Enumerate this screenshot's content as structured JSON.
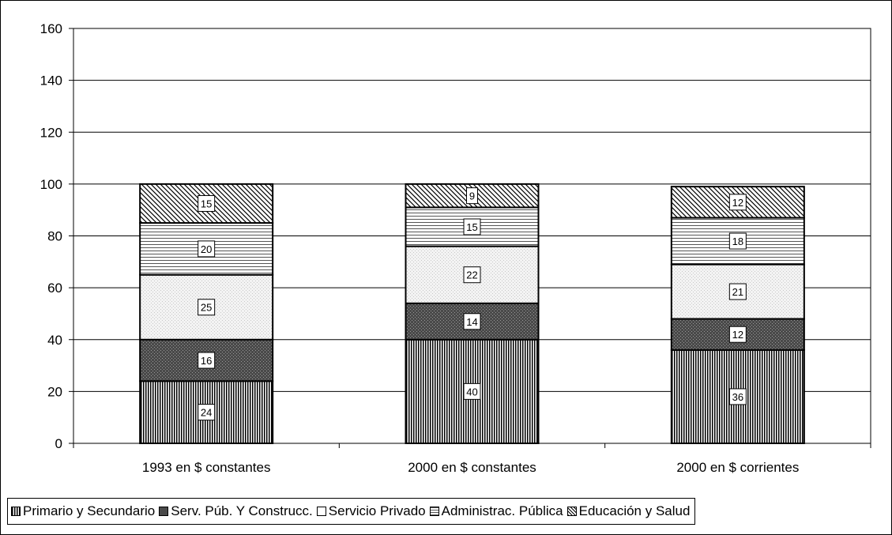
{
  "chart_data": {
    "type": "bar",
    "stacked": true,
    "categories": [
      "1993 en $ constantes",
      "2000 en $ constantes",
      "2000 en $ corrientes"
    ],
    "series": [
      {
        "name": "Primario y Secundario",
        "values": [
          24,
          40,
          36
        ],
        "pattern": "vertical-lines"
      },
      {
        "name": "Serv. Púb. Y Construcc.",
        "values": [
          16,
          14,
          12
        ],
        "pattern": "dark-dots"
      },
      {
        "name": "Servicio Privado",
        "values": [
          25,
          22,
          21
        ],
        "pattern": "light-dots"
      },
      {
        "name": "Administrac. Pública",
        "values": [
          20,
          15,
          18
        ],
        "pattern": "horizontal-lines"
      },
      {
        "name": "Educación y Salud",
        "values": [
          15,
          9,
          12
        ],
        "pattern": "diagonal-lines"
      }
    ],
    "ylim": [
      0,
      160
    ],
    "yticks": [
      0,
      20,
      40,
      60,
      80,
      100,
      120,
      140,
      160
    ],
    "ytick_labels": [
      "0",
      "20",
      "40",
      "60",
      "80",
      "100",
      "120",
      "140",
      "160"
    ],
    "grid": true,
    "legend_position": "bottom",
    "title": "",
    "xlabel": "",
    "ylabel": ""
  }
}
